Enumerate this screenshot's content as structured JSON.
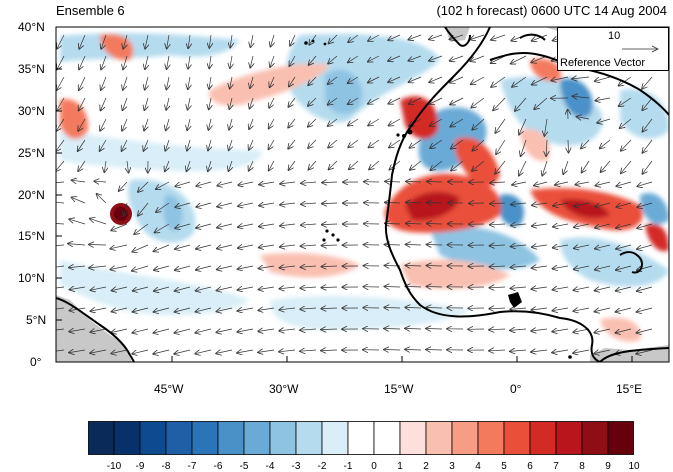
{
  "header": {
    "title_left": "Ensemble 6",
    "title_right": "(102 h forecast) 0600 UTC 14 Aug 2004"
  },
  "map": {
    "lon_range": [
      -60,
      20
    ],
    "lat_range": [
      0,
      40
    ],
    "lat_ticks": [
      "40°N",
      "35°N",
      "30°N",
      "25°N",
      "20°N",
      "15°N",
      "10°N",
      "5°N",
      "0°"
    ],
    "lon_ticks": [
      "45°W",
      "30°W",
      "15°W",
      "0°",
      "15°E"
    ],
    "land_color": "#c8c8c8",
    "coast_color": "#000000"
  },
  "reference_vector": {
    "magnitude": "10",
    "label": "Reference Vector"
  },
  "colorbar": {
    "ticks": [
      "-10",
      "-9",
      "-8",
      "-7",
      "-6",
      "-5",
      "-4",
      "-3",
      "-2",
      "-1",
      "0",
      "1",
      "2",
      "3",
      "4",
      "5",
      "6",
      "7",
      "8",
      "9",
      "10"
    ],
    "colors": [
      "#0a2a5a",
      "#08306b",
      "#0d4a8f",
      "#1f5fa8",
      "#2b74b8",
      "#4a91c8",
      "#6aaad6",
      "#8ec3e2",
      "#b5dbee",
      "#d9eef8",
      "#ffffff",
      "#ffffff",
      "#fde0dc",
      "#f9bfb0",
      "#f79d86",
      "#f47a5e",
      "#ea4f3a",
      "#d42a25",
      "#b8161c",
      "#8f0d15",
      "#67000d"
    ]
  }
}
